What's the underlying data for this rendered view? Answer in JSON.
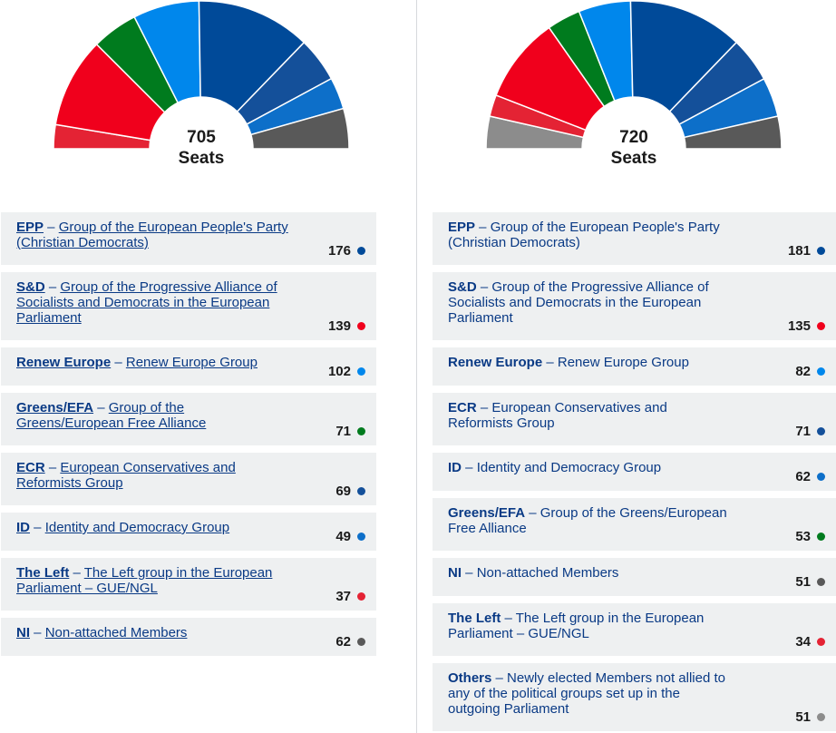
{
  "chart_data": [
    {
      "type": "pie",
      "subtype": "semicircle-parliament",
      "total_label": "705",
      "total_word": "Seats",
      "slices": [
        {
          "abbr": "EPP",
          "name": "Group of the European People's Party (Christian Democrats)",
          "seats": 176,
          "color": "#004a99"
        },
        {
          "abbr": "S&D",
          "name": "Group of the Progressive Alliance of Socialists and Democrats in the European Parliament",
          "seats": 139,
          "color": "#f0001c"
        },
        {
          "abbr": "Renew Europe",
          "name": "Renew Europe Group",
          "seats": 102,
          "color": "#0087ec"
        },
        {
          "abbr": "Greens/EFA",
          "name": "Group of the Greens/European Free Alliance",
          "seats": 71,
          "color": "#007b1e"
        },
        {
          "abbr": "ECR",
          "name": "European Conservatives and Reformists Group",
          "seats": 69,
          "color": "#14509a"
        },
        {
          "abbr": "ID",
          "name": "Identity and Democracy Group",
          "seats": 49,
          "color": "#0d6fc9"
        },
        {
          "abbr": "The Left",
          "name": "The Left group in the European Parliament – GUE/NGL",
          "seats": 37,
          "color": "#e42334"
        },
        {
          "abbr": "NI",
          "name": "Non-attached Members",
          "seats": 62,
          "color": "#595959"
        }
      ]
    },
    {
      "type": "pie",
      "subtype": "semicircle-parliament",
      "total_label": "720",
      "total_word": "Seats",
      "slices": [
        {
          "abbr": "EPP",
          "name": "Group of the European People's Party (Christian Democrats)",
          "seats": 181,
          "color": "#004a99"
        },
        {
          "abbr": "S&D",
          "name": "Group of the Progressive Alliance of Socialists and Democrats in the European Parliament",
          "seats": 135,
          "color": "#f0001c"
        },
        {
          "abbr": "Renew Europe",
          "name": "Renew Europe Group",
          "seats": 82,
          "color": "#0087ec"
        },
        {
          "abbr": "ECR",
          "name": "European Conservatives and Reformists Group",
          "seats": 71,
          "color": "#14509a"
        },
        {
          "abbr": "ID",
          "name": "Identity and Democracy Group",
          "seats": 62,
          "color": "#0d6fc9"
        },
        {
          "abbr": "Greens/EFA",
          "name": "Group of the Greens/European Free Alliance",
          "seats": 53,
          "color": "#007b1e"
        },
        {
          "abbr": "NI",
          "name": "Non-attached Members",
          "seats": 51,
          "color": "#595959"
        },
        {
          "abbr": "The Left",
          "name": "The Left group in the European Parliament – GUE/NGL",
          "seats": 34,
          "color": "#e42334"
        },
        {
          "abbr": "Others",
          "name": "Newly elected Members not allied to any of the political groups set up in the outgoing Parliament",
          "seats": 51,
          "color": "#8c8c8c"
        }
      ]
    }
  ],
  "arc_order": [
    [
      "The Left",
      "S&D",
      "Greens/EFA",
      "Renew Europe",
      "EPP",
      "ECR",
      "ID",
      "NI"
    ],
    [
      "Others",
      "The Left",
      "S&D",
      "Greens/EFA",
      "Renew Europe",
      "EPP",
      "ECR",
      "ID",
      "NI"
    ]
  ]
}
